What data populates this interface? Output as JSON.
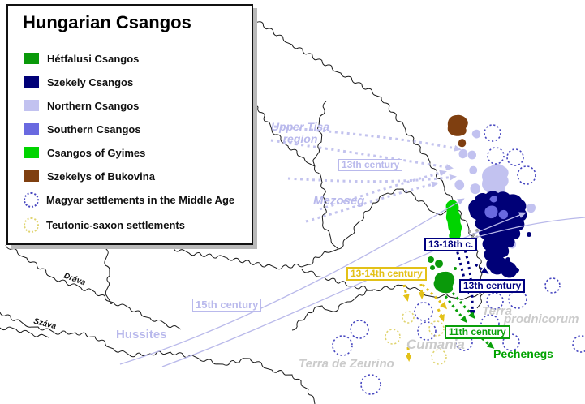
{
  "legend": {
    "title": "Hungarian Csangos",
    "items": [
      {
        "label": "Hétfalusi Csangos",
        "color": "#0a990a",
        "type": "swatch"
      },
      {
        "label": "Szekely Csangos",
        "color": "#000077",
        "type": "swatch"
      },
      {
        "label": "Northern Csangos",
        "color": "#c2c2f0",
        "type": "swatch"
      },
      {
        "label": "Southern Csangos",
        "color": "#6969e0",
        "type": "swatch"
      },
      {
        "label": "Csangos of Gyimes",
        "color": "#00d400",
        "type": "swatch"
      },
      {
        "label": "Szekelys of Bukovina",
        "color": "#7f3f10",
        "type": "swatch"
      },
      {
        "label": "Magyar settlements in the Middle Age",
        "color": "#4747c0",
        "type": "circle"
      },
      {
        "label": "Teutonic-saxon settlements",
        "color": "#e0d470",
        "type": "circle"
      }
    ]
  },
  "map": {
    "migration_labels": {
      "upper_tisa_line1": "Upper Tisa",
      "upper_tisa_line2": "region",
      "century13_west": "13th century",
      "mezoseg": "Mezoseg",
      "century15": "15th century",
      "hussites": "Hussites",
      "c13_18": "13-18th c.",
      "century13_south": "13th century",
      "century11": "11th century",
      "pechenegs": "Pechenegs",
      "c13_14": "13-14th century"
    },
    "territory_labels": {
      "cumania": "Cumania",
      "terra_de_zeurino": "Terra de Zeurino",
      "terra_prodnicorum_line1": "Terra",
      "terra_prodnicorum_line2": "prodnicorum"
    },
    "river_labels": {
      "drava": "Dráva",
      "szava": "Száva"
    }
  },
  "palette": {
    "hetfalusi_green": "#0a990a",
    "szekely_navy": "#000077",
    "northern_lavender": "#c2c2f0",
    "southern_blue": "#6969e0",
    "gyimes_bright_green": "#00d400",
    "bukovina_brown": "#7f3f10",
    "magyar_circle_blue": "#4747c0",
    "teutonic_circle_yellow": "#e0d470",
    "lavender_arrow": "#c3c3ee",
    "navy_arrow": "#000080",
    "green_arrow": "#0aa00a",
    "yellow_arrow": "#e3c117",
    "gray_territory_text": "#cbcbcb",
    "river_black": "#1a1a1a"
  }
}
